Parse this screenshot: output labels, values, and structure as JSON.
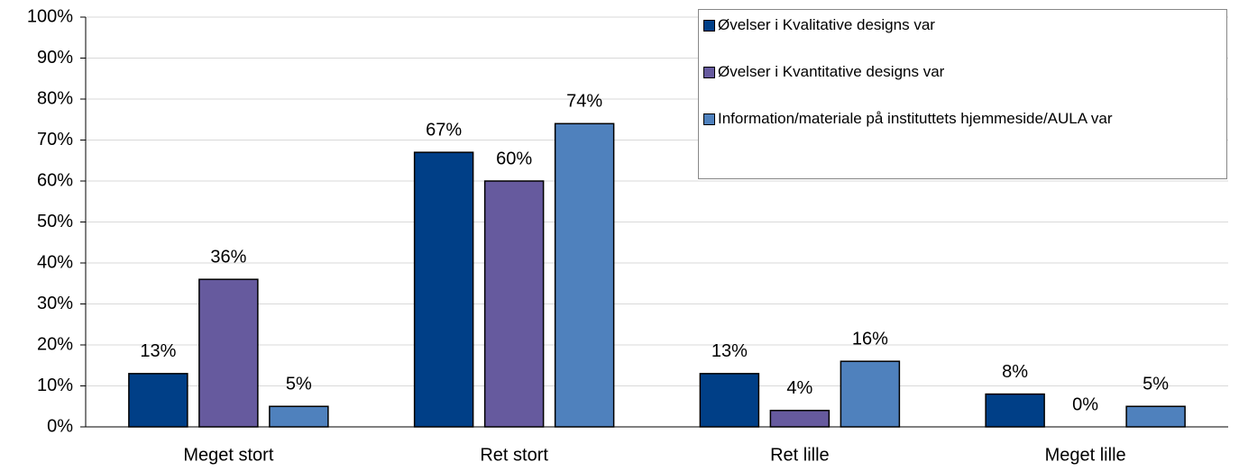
{
  "chart_data": {
    "type": "bar",
    "categories": [
      "Meget stort",
      "Ret stort",
      "Ret lille",
      "Meget lille"
    ],
    "series": [
      {
        "name": "Øvelser i Kvalitative designs var",
        "color": "#003f87",
        "values": [
          13,
          67,
          13,
          8
        ],
        "value_labels": [
          "13%",
          "67%",
          "13%",
          "8%"
        ]
      },
      {
        "name": "Øvelser i Kvantitative designs var",
        "color": "#665a9e",
        "values": [
          36,
          60,
          4,
          0
        ],
        "value_labels": [
          "36%",
          "60%",
          "4%",
          "0%"
        ]
      },
      {
        "name": "Information/materiale på instituttets hjemmeside/AULA var",
        "color": "#4f81bd",
        "values": [
          5,
          74,
          16,
          5
        ],
        "value_labels": [
          "5%",
          "74%",
          "16%",
          "5%"
        ]
      }
    ],
    "ylim": [
      0,
      100
    ],
    "yticks": [
      {
        "value": 0,
        "label": "0%"
      },
      {
        "value": 10,
        "label": "10%"
      },
      {
        "value": 20,
        "label": "20%"
      },
      {
        "value": 30,
        "label": "30%"
      },
      {
        "value": 40,
        "label": "40%"
      },
      {
        "value": 50,
        "label": "50%"
      },
      {
        "value": 60,
        "label": "60%"
      },
      {
        "value": 70,
        "label": "70%"
      },
      {
        "value": 80,
        "label": "80%"
      },
      {
        "value": 90,
        "label": "90%"
      },
      {
        "value": 100,
        "label": "100%"
      }
    ],
    "grid": true,
    "legend": "upper right"
  }
}
